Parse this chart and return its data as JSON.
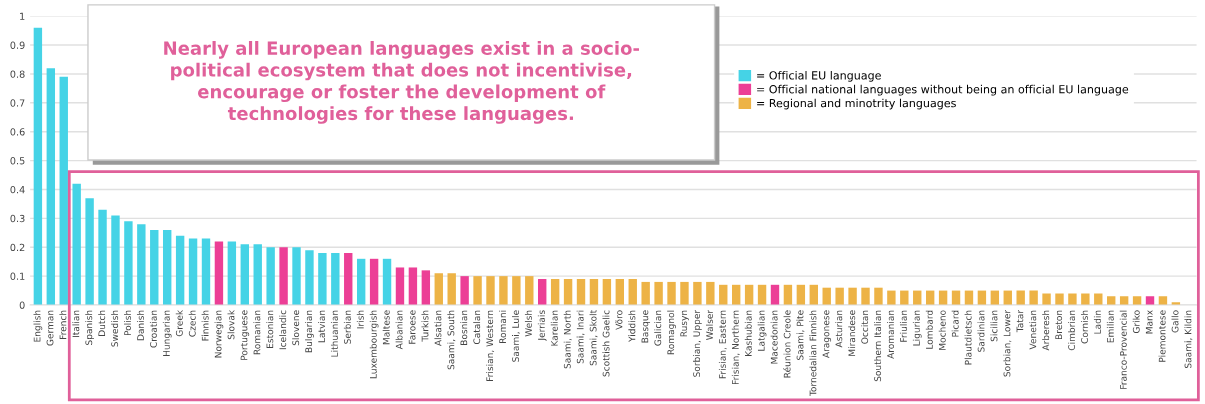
{
  "chart_data": {
    "type": "bar",
    "categories": [
      "English",
      "German",
      "French",
      "Italian",
      "Spanish",
      "Dutch",
      "Swedish",
      "Polish",
      "Danish",
      "Croatian",
      "Hungarian",
      "Greek",
      "Czech",
      "Finnish",
      "Norwegian",
      "Slovak",
      "Portuguese",
      "Romanian",
      "Estonian",
      "Icelandic",
      "Slovene",
      "Bulgarian",
      "Latvian",
      "Lithuanian",
      "Serbian",
      "Irish",
      "Luxembourgish",
      "Maltese",
      "Albanian",
      "Faroese",
      "Turkish",
      "Alsatian",
      "Saami, South",
      "Bosnian",
      "Catalan",
      "Frisian, Western",
      "Romani",
      "Saami, Lule",
      "Welsh",
      "Jerriais",
      "Karelian",
      "Saami, North",
      "Saami, Inari",
      "Saami, Skolt",
      "Scottish Gaelic",
      "Võro",
      "Yiddish",
      "Basque",
      "Galician",
      "Romagnol",
      "Rusyn",
      "Sorbian, Upper",
      "Walser",
      "Frisian, Eastern",
      "Frisian, Northern",
      "Kashubian",
      "Latgalian",
      "Macedonian",
      "Réunion Creole",
      "Saami, Pite",
      "Tornedalian Finnish",
      "Aragonese",
      "Asturian",
      "Mirandese",
      "Occitan",
      "Southern Italian",
      "Aromanian",
      "Friulian",
      "Ligurian",
      "Lombard",
      "Mocheno",
      "Picard",
      "Plautdietsch",
      "Sardinian",
      "Sicilian",
      "Sorbian, Lower",
      "Tatar",
      "Venetian",
      "Arberesh",
      "Breton",
      "Cimbrian",
      "Cornish",
      "Ladin",
      "Emilian",
      "Franco-Provencial",
      "Griko",
      "Manx",
      "Piemontese",
      "Gallo",
      "Saami, Kildin"
    ],
    "series": [
      {
        "name": "= Official EU language",
        "color": "#45d3e6",
        "values": [
          0.96,
          0.82,
          0.79,
          0.42,
          0.37,
          0.33,
          0.31,
          0.29,
          0.28,
          0.26,
          0.26,
          0.24,
          0.23,
          0.23,
          null,
          0.22,
          0.21,
          0.21,
          0.2,
          null,
          0.2,
          0.19,
          0.18,
          0.18,
          null,
          0.16,
          null,
          0.16,
          null,
          null,
          null,
          null,
          null,
          null,
          null,
          null,
          null,
          null,
          null,
          null,
          null,
          null,
          null,
          null,
          null,
          null,
          null,
          null,
          null,
          null,
          null,
          null,
          null,
          null,
          null,
          null,
          null,
          null,
          null,
          null,
          null,
          null,
          null,
          null,
          null,
          null,
          null,
          null,
          null,
          null,
          null,
          null,
          null,
          null,
          null,
          null,
          null,
          null,
          null,
          null,
          null,
          null,
          null,
          null,
          null,
          null,
          null,
          null,
          null,
          null
        ]
      },
      {
        "name": "= Official national languages without being an official EU language",
        "color": "#ec3f96",
        "values": [
          null,
          null,
          null,
          null,
          null,
          null,
          null,
          null,
          null,
          null,
          null,
          null,
          null,
          null,
          0.22,
          null,
          null,
          null,
          null,
          0.2,
          null,
          null,
          null,
          null,
          0.18,
          null,
          0.16,
          null,
          0.13,
          0.13,
          0.12,
          null,
          null,
          0.1,
          null,
          null,
          null,
          null,
          null,
          0.09,
          null,
          null,
          null,
          null,
          null,
          null,
          null,
          null,
          null,
          null,
          null,
          null,
          null,
          null,
          null,
          null,
          null,
          0.07,
          null,
          null,
          null,
          null,
          null,
          null,
          null,
          null,
          null,
          null,
          null,
          null,
          null,
          null,
          null,
          null,
          null,
          null,
          null,
          null,
          null,
          null,
          null,
          null,
          null,
          null,
          null,
          null,
          0.03,
          null,
          null,
          null
        ]
      },
      {
        "name": "= Regional and minotrity languages",
        "color": "#edb346",
        "values": [
          null,
          null,
          null,
          null,
          null,
          null,
          null,
          null,
          null,
          null,
          null,
          null,
          null,
          null,
          null,
          null,
          null,
          null,
          null,
          null,
          null,
          null,
          null,
          null,
          null,
          null,
          null,
          null,
          null,
          null,
          null,
          0.11,
          0.11,
          null,
          0.1,
          0.1,
          0.1,
          0.1,
          0.1,
          null,
          0.09,
          0.09,
          0.09,
          0.09,
          0.09,
          0.09,
          0.09,
          0.08,
          0.08,
          0.08,
          0.08,
          0.08,
          0.08,
          0.07,
          0.07,
          0.07,
          0.07,
          null,
          0.07,
          0.07,
          0.07,
          0.06,
          0.06,
          0.06,
          0.06,
          0.06,
          0.05,
          0.05,
          0.05,
          0.05,
          0.05,
          0.05,
          0.05,
          0.05,
          0.05,
          0.05,
          0.05,
          0.05,
          0.04,
          0.04,
          0.04,
          0.04,
          0.04,
          0.03,
          0.03,
          0.03,
          null,
          0.03,
          0.01,
          0
        ]
      }
    ],
    "ylim": [
      0,
      1
    ],
    "yticks": [
      0,
      0.1,
      0.2,
      0.3,
      0.4,
      0.5,
      0.6,
      0.7,
      0.8,
      0.9,
      1
    ],
    "grid": "y",
    "legend": "top right",
    "annotations": [
      "Nearly all European languages exist in a socio-\npolitical ecosystem that does not incentivise,\nencourage or foster the development of\ntechnologies for these languages."
    ]
  }
}
